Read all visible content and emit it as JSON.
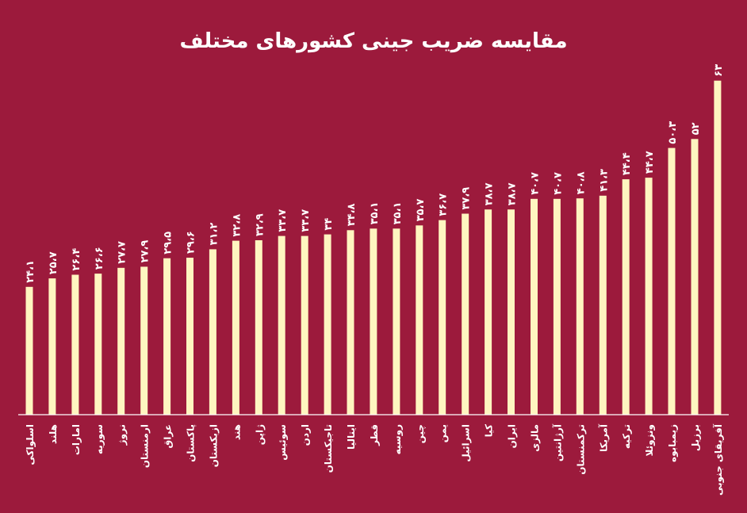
{
  "chart_data": {
    "type": "bar",
    "title": "مقایسه ضریب جینی کشورهای مختلف",
    "xlabel": "",
    "ylabel": "",
    "ylim": [
      0,
      64
    ],
    "grid": false,
    "colors": {
      "background": "#9c1a3c",
      "bar": "#fff5c0",
      "text": "#ffffff",
      "axis": "#ffffff"
    },
    "categories": [
      "اسلواکی",
      "هلند",
      "امارات",
      "سوریه",
      "نروژ",
      "ارمنستان",
      "عراق",
      "پاکستان",
      "ازبکستان",
      "هند",
      "ژاپن",
      "سوئیس",
      "اردن",
      "تاجیکستان",
      "ایتالیا",
      "قطر",
      "روسیه",
      "چین",
      "یمن",
      "اسرائیل",
      "کیا",
      "ایران",
      "مالزی",
      "آرژانتین",
      "ترکمنستان",
      "آمریکا",
      "ترکیه",
      "ونزوئلا",
      "زیمبابوه",
      "برزیل",
      "آفریقای جنوبی"
    ],
    "values": [
      24.1,
      25.7,
      26.4,
      26.6,
      27.7,
      27.9,
      29.5,
      29.6,
      31.2,
      32.8,
      32.9,
      33.7,
      33.7,
      34,
      34.8,
      35.1,
      35.1,
      35.7,
      36.7,
      37.9,
      38.7,
      38.7,
      40.7,
      40.7,
      40.8,
      41.3,
      44.4,
      44.7,
      50.3,
      52,
      63
    ],
    "value_labels": [
      "۲۴،۱",
      "۲۵،۷",
      "۲۶،۴",
      "۲۶،۶",
      "۲۷،۷",
      "۲۷،۹",
      "۲۹،۵",
      "۲۹،۶",
      "۳۱،۲",
      "۳۲،۸",
      "۳۲،۹",
      "۳۳،۷",
      "۳۳،۷",
      "۳۴",
      "۳۴،۸",
      "۳۵،۱",
      "۳۵،۱",
      "۳۵،۷",
      "۳۶،۷",
      "۳۷،۹",
      "۳۸،۷",
      "۳۸،۷",
      "۴۰،۷",
      "۴۰،۷",
      "۴۰،۸",
      "۴۱،۳",
      "۴۴،۴",
      "۴۴،۷",
      "۵۰،۳",
      "۵۲",
      "۶۳"
    ]
  }
}
